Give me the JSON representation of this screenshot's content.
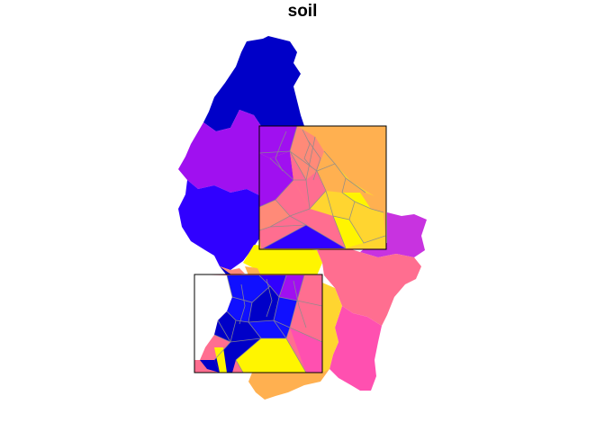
{
  "map": {
    "title": "soil",
    "colors": {
      "navy": "#0000C8",
      "violet": "#A010F0",
      "blue": "#3000FF",
      "magenta": "#C833E0",
      "yellow": "#FFF500",
      "gold": "#FFD530",
      "orange": "#FFB050",
      "coral": "#FF6E90",
      "pink": "#FF50B0",
      "salmon": "#FF8A78",
      "bright_blue": "#1010FF",
      "mesh_line": "#8C8C8C",
      "bbox_line": "#000000"
    }
  }
}
